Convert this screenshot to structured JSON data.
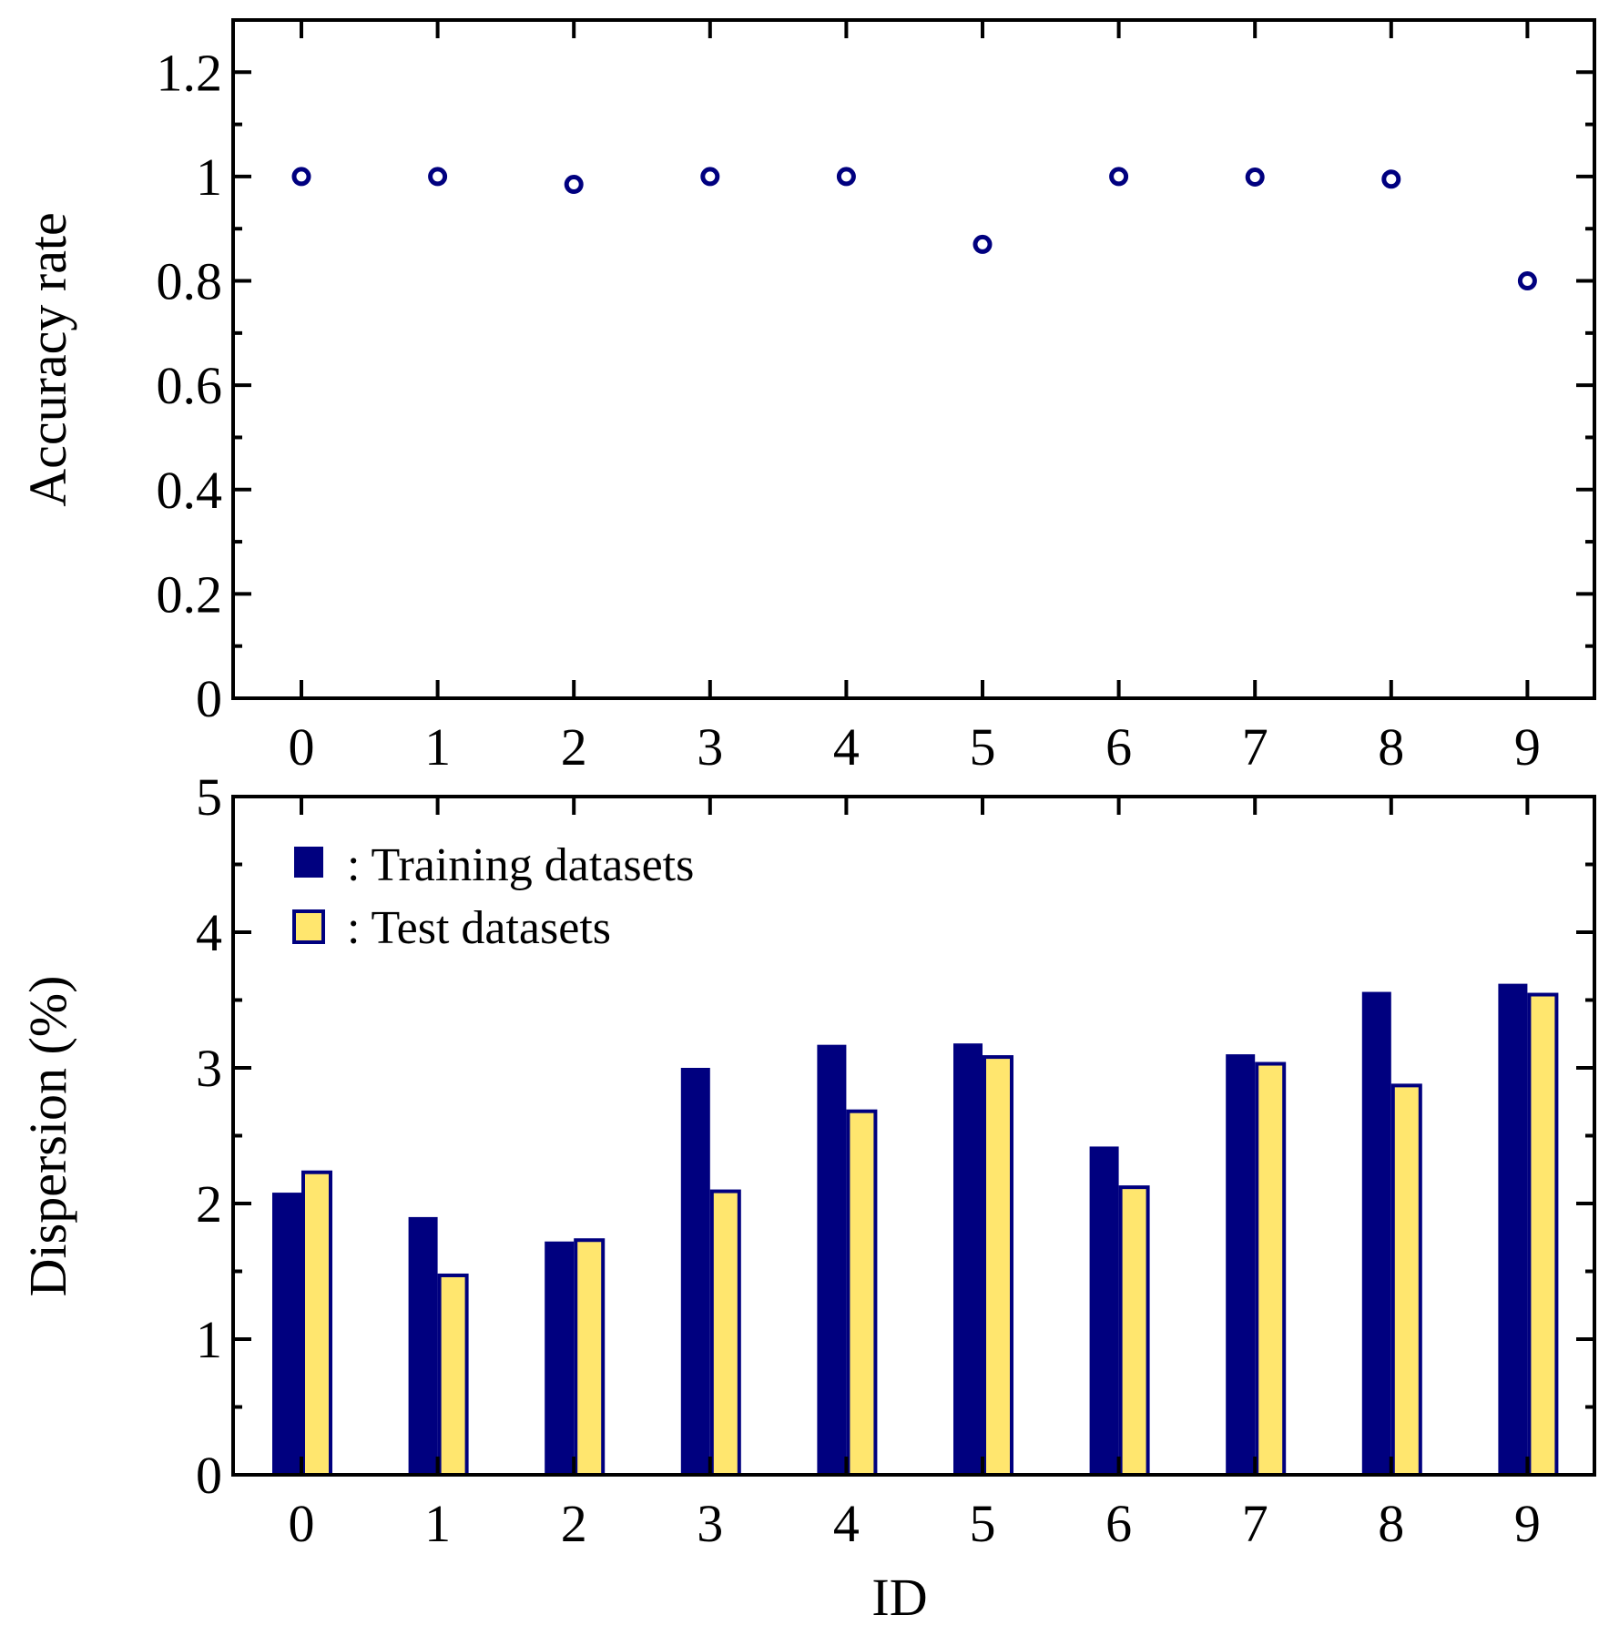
{
  "colors": {
    "training": "#00007f",
    "test": "#ffe66e",
    "test_border": "#00007f",
    "marker": "#00007f",
    "axis": "#000000"
  },
  "chart_data": [
    {
      "type": "scatter",
      "title": "",
      "xlabel": "",
      "ylabel": "Accuracy rate",
      "ylim": [
        0,
        1.3
      ],
      "yticks": [
        "0",
        "0.2",
        "0.4",
        "0.6",
        "0.8",
        "1",
        "1.2"
      ],
      "ytick_values": [
        0,
        0.2,
        0.4,
        0.6,
        0.8,
        1.0,
        1.2
      ],
      "x": [
        0,
        1,
        2,
        3,
        4,
        5,
        6,
        7,
        8,
        9
      ],
      "xticks": [
        "0",
        "1",
        "2",
        "3",
        "4",
        "5",
        "6",
        "7",
        "8",
        "9"
      ],
      "series": [
        {
          "name": "Accuracy rate",
          "marker": "open-circle",
          "values": [
            1.0,
            1.0,
            0.985,
            1.0,
            1.0,
            0.87,
            1.0,
            0.999,
            0.995,
            0.8
          ]
        }
      ]
    },
    {
      "type": "bar",
      "title": "",
      "xlabel": "ID",
      "ylabel": "Dispersion (%)",
      "ylim": [
        0,
        5
      ],
      "yticks": [
        "0",
        "1",
        "2",
        "3",
        "4",
        "5"
      ],
      "ytick_values": [
        0,
        1,
        2,
        3,
        4,
        5
      ],
      "categories": [
        "0",
        "1",
        "2",
        "3",
        "4",
        "5",
        "6",
        "7",
        "8",
        "9"
      ],
      "legend_position": "top-left",
      "series": [
        {
          "name": "Training datasets",
          "legend_label": ": Training datasets",
          "values": [
            2.08,
            1.9,
            1.72,
            3.0,
            3.17,
            3.18,
            2.42,
            3.1,
            3.56,
            3.62
          ]
        },
        {
          "name": "Test datasets",
          "legend_label": ": Test datasets",
          "values": [
            2.23,
            1.47,
            1.73,
            2.09,
            2.68,
            3.08,
            2.12,
            3.03,
            2.87,
            3.54
          ]
        }
      ]
    }
  ]
}
